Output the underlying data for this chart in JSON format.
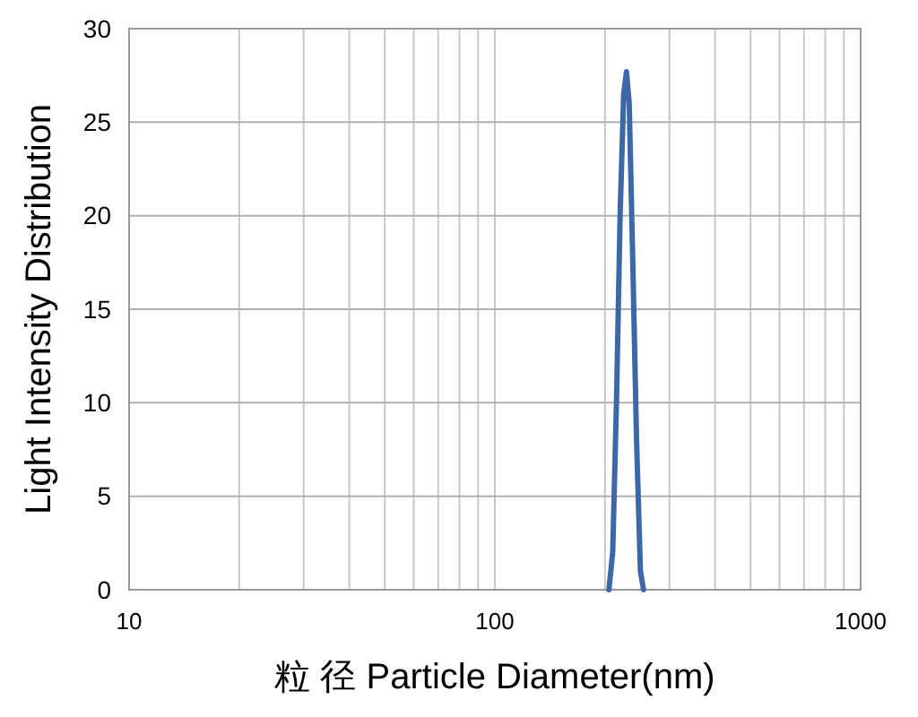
{
  "chart_data": {
    "type": "line",
    "xlabel": "粒 径  Particle Diameter(nm)",
    "ylabel": "Light Intensity Distribution",
    "log": "x",
    "grid": true,
    "marker": "none",
    "line_style": "solid",
    "xlim": [
      10,
      1000
    ],
    "ylim": [
      0,
      30
    ],
    "yticks": [
      0,
      5,
      10,
      15,
      20,
      25,
      30
    ],
    "xticks": [
      10,
      {
        "value": 20,
        "label": null
      },
      {
        "value": 30,
        "label": null
      },
      {
        "value": 40,
        "label": null
      },
      {
        "value": 50,
        "label": null
      },
      {
        "value": 60,
        "label": null
      },
      {
        "value": 70,
        "label": null
      },
      {
        "value": 80,
        "label": null
      },
      {
        "value": 90,
        "label": null
      },
      100,
      {
        "value": 200,
        "label": null
      },
      {
        "value": 300,
        "label": null
      },
      {
        "value": 400,
        "label": null
      },
      {
        "value": 500,
        "label": null
      },
      {
        "value": 600,
        "label": null
      },
      {
        "value": 700,
        "label": null
      },
      {
        "value": 800,
        "label": null
      },
      {
        "value": 900,
        "label": null
      },
      1000
    ],
    "series": [
      {
        "color": "#3d68a8",
        "x": [
          205,
          210,
          215,
          220,
          225,
          229,
          233,
          238,
          244,
          250,
          255
        ],
        "values": [
          0,
          2,
          10,
          20,
          26.5,
          27.7,
          26,
          18,
          8,
          1,
          0
        ]
      }
    ]
  }
}
